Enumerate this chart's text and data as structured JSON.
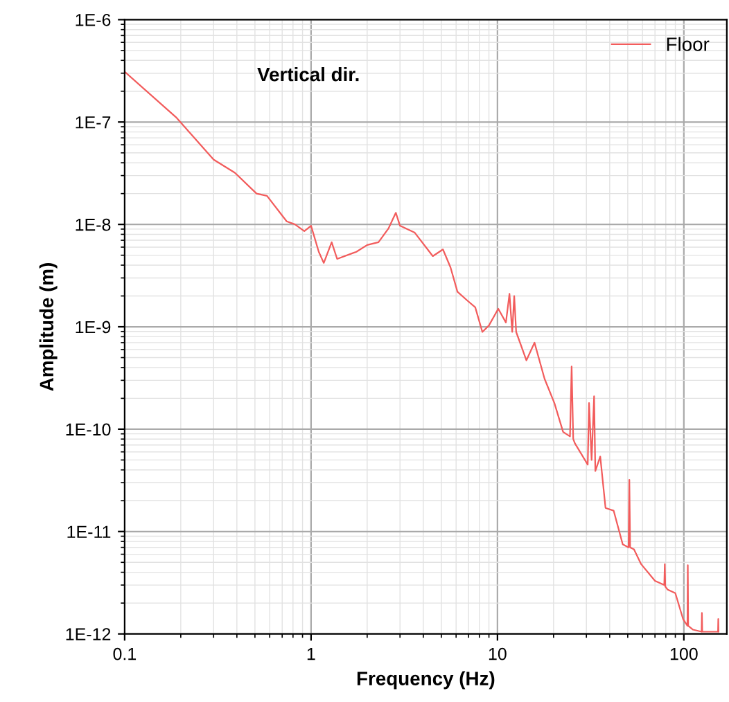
{
  "chart_data": {
    "type": "line",
    "xlabel": "Frequency (Hz)",
    "ylabel": "Amplitude (m)",
    "annotations": [
      "Vertical dir."
    ],
    "log": "xy",
    "grid": true,
    "legend": "top right",
    "marker": "none",
    "line_style": "solid",
    "xlim": [
      0.1,
      170
    ],
    "xticks": [
      0.1,
      1,
      10,
      100
    ],
    "ylim": [
      1e-12,
      1e-06
    ],
    "yticks": [
      {
        "value": 1e-12,
        "label": "1E-12"
      },
      {
        "value": 1e-11,
        "label": "1E-11"
      },
      {
        "value": 1e-10,
        "label": "1E-10"
      },
      {
        "value": 1e-09,
        "label": "1E-9"
      },
      {
        "value": 1e-08,
        "label": "1E-8"
      },
      {
        "value": 1e-07,
        "label": "1E-7"
      },
      {
        "value": 1e-06,
        "label": "1E-6"
      }
    ],
    "series": [
      {
        "name": "Floor",
        "color": "#f25c5c",
        "x": [
          0.1,
          0.19,
          0.3,
          0.39,
          0.51,
          0.58,
          0.74,
          0.82,
          0.92,
          1.0,
          1.1,
          1.17,
          1.29,
          1.38,
          1.75,
          2.0,
          2.3,
          2.6,
          2.85,
          3.0,
          3.6,
          4.5,
          5.1,
          5.6,
          6.1,
          6.9,
          7.6,
          8.3,
          9.0,
          10.1,
          11.1,
          11.6,
          12.0,
          12.3,
          12.6,
          14.3,
          15.8,
          17.9,
          20.2,
          22.5,
          24.5,
          25.0,
          25.5,
          26,
          30.5,
          31,
          32,
          33,
          33.5,
          35.6,
          38,
          42,
          47,
          50.5,
          51,
          51.5,
          54,
          59,
          70,
          78.5,
          79,
          79.5,
          82,
          90,
          99,
          104.5,
          105,
          105.5,
          112,
          124.5,
          125,
          125.5,
          152.5,
          153,
          153.5
        ],
        "values": [
          3.1e-07,
          1.1e-07,
          4.3e-08,
          3.2e-08,
          2e-08,
          1.9e-08,
          1.07e-08,
          1e-08,
          8.6e-09,
          9.7e-09,
          5.4e-09,
          4.2e-09,
          6.7e-09,
          4.6e-09,
          5.4e-09,
          6.3e-09,
          6.7e-09,
          9.1e-09,
          1.3e-08,
          9.7e-09,
          8.3e-09,
          4.9e-09,
          5.7e-09,
          3.8e-09,
          2.2e-09,
          1.8e-09,
          1.55e-09,
          8.9e-10,
          1.03e-09,
          1.5e-09,
          1.1e-09,
          2.1e-09,
          8.9e-10,
          2e-09,
          8.9e-10,
          4.7e-10,
          7e-10,
          3.1e-10,
          1.8e-10,
          9.4e-11,
          8.5e-11,
          4.1e-10,
          8e-11,
          7.3e-11,
          4.5e-11,
          1.8e-10,
          5e-11,
          2.1e-10,
          3.9e-11,
          5.4e-11,
          1.7e-11,
          1.6e-11,
          7.5e-12,
          7e-12,
          3.2e-11,
          7e-12,
          6.7e-12,
          4.8e-12,
          3.3e-12,
          3e-12,
          4.8e-12,
          2.9e-12,
          2.7e-12,
          2.5e-12,
          1.4e-12,
          1.2e-12,
          4.7e-12,
          1.2e-12,
          1.1e-12,
          1.05e-12,
          1.6e-12,
          1.05e-12,
          1.05e-12,
          1.4e-12,
          1.05e-12
        ]
      }
    ]
  }
}
